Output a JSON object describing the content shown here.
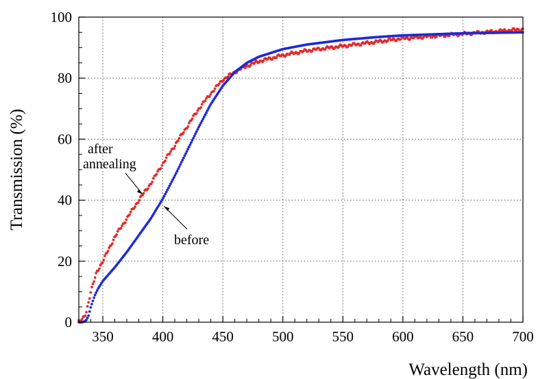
{
  "chart_data": {
    "type": "scatter",
    "title": "",
    "xlabel": "Wavelength (nm)",
    "ylabel": "Transmission (%)",
    "xlim": [
      330,
      700
    ],
    "ylim": [
      0,
      100
    ],
    "x_ticks": [
      350,
      400,
      450,
      500,
      550,
      600,
      650,
      700
    ],
    "y_ticks": [
      0,
      20,
      40,
      60,
      80,
      100
    ],
    "x_tick_labels": [
      "350",
      "400",
      "450",
      "500",
      "550",
      "600",
      "650",
      "700"
    ],
    "y_tick_labels": [
      "0",
      "20",
      "40",
      "60",
      "80",
      "100"
    ],
    "grid": true,
    "annotations": [
      {
        "text_lines": [
          "after",
          "annealing"
        ],
        "points_to": [
          383,
          42
        ],
        "series_color": "#e32b2b"
      },
      {
        "text_lines": [
          "before"
        ],
        "points_to": [
          401,
          38
        ],
        "series_color": "#1f2ad6"
      }
    ],
    "series": [
      {
        "color": "#e32b2b",
        "x": [
          330,
          333,
          336,
          340,
          345,
          350,
          355,
          360,
          370,
          380,
          390,
          400,
          410,
          420,
          430,
          440,
          450,
          460,
          470,
          480,
          500,
          520,
          550,
          580,
          600,
          650,
          700
        ],
        "y": [
          0.2,
          0.8,
          3.0,
          10.0,
          16.5,
          20.0,
          24.0,
          28.0,
          34.0,
          40.0,
          45.5,
          52.0,
          58.0,
          64.0,
          70.0,
          75.0,
          79.5,
          82.0,
          84.0,
          85.5,
          87.5,
          89.0,
          90.5,
          92.0,
          93.0,
          94.5,
          96.0
        ]
      },
      {
        "color": "#1f2ad6",
        "x": [
          330,
          333,
          336,
          338,
          340,
          343,
          346,
          350,
          360,
          370,
          380,
          390,
          400,
          410,
          420,
          430,
          440,
          450,
          460,
          470,
          480,
          500,
          520,
          550,
          580,
          600,
          650,
          700
        ],
        "y": [
          0,
          0,
          0.5,
          2.0,
          5.0,
          8.5,
          11.0,
          13.5,
          18.0,
          23.0,
          28.5,
          34.0,
          40.5,
          48.0,
          56.0,
          64.0,
          71.5,
          77.5,
          82.0,
          85.0,
          87.0,
          89.5,
          91.0,
          92.5,
          93.5,
          94.0,
          94.7,
          95.0
        ]
      }
    ]
  }
}
